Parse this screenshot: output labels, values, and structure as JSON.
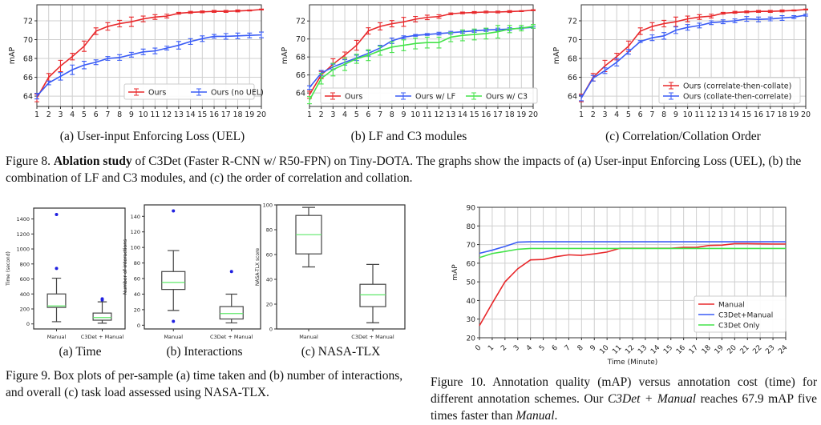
{
  "figure8": {
    "label": "Figure 8.",
    "bold": "Ablation study",
    "text": " of C3Det (Faster R-CNN w/ R50-FPN) on Tiny-DOTA. The graphs show the impacts of (a) User-input Enforcing Loss (UEL), (b) the combination of LF and C3 modules, and (c) the order of correlation and collation."
  },
  "figure9": {
    "text": "Figure 9. Box plots of per-sample (a) time taken and (b) number of interactions, and overall (c) task load assessed using NASA-TLX."
  },
  "figure10": {
    "part1": "Figure 10. Annotation quality (mAP) versus annotation cost (time) for different annotation schemes. Our ",
    "italic1": "C3Det + Manual",
    "part2": " reaches 67.9 mAP five times faster than ",
    "italic2": "Manual",
    "part3": "."
  },
  "colors": {
    "red": "#e8282b",
    "blue": "#3a5cf5",
    "green": "#44e34a",
    "median": "#5fe86a",
    "outlier": "#2020e0"
  },
  "chart_data": [
    {
      "id": "fig8a",
      "type": "line",
      "caption": "(a) User-input Enforcing Loss (UEL)",
      "ylabel": "mAP",
      "xlabel": "",
      "xlim": [
        1,
        20
      ],
      "ylim": [
        62.9,
        73.7
      ],
      "xticks": [
        1,
        2,
        3,
        4,
        5,
        6,
        7,
        8,
        9,
        10,
        11,
        12,
        13,
        14,
        15,
        16,
        17,
        18,
        19,
        20
      ],
      "yticks": [
        64,
        66,
        68,
        70,
        72
      ],
      "grid": true,
      "legend": "lower right",
      "error_bars": true,
      "x": [
        1,
        2,
        3,
        4,
        5,
        6,
        7,
        8,
        9,
        10,
        11,
        12,
        13,
        14,
        15,
        16,
        17,
        18,
        19,
        20
      ],
      "series": [
        {
          "name": "Ours",
          "color": "#e8282b",
          "values": [
            63.8,
            66.0,
            67.2,
            68.2,
            69.3,
            70.9,
            71.4,
            71.7,
            71.9,
            72.2,
            72.4,
            72.5,
            72.8,
            72.9,
            72.95,
            73.0,
            73.0,
            73.05,
            73.1,
            73.2
          ],
          "errors": [
            0.4,
            0.4,
            0.6,
            0.35,
            0.55,
            0.35,
            0.4,
            0.35,
            0.5,
            0.3,
            0.25,
            0.2,
            0.1,
            0.1,
            0.1,
            0.1,
            0.1,
            0.1,
            0.05,
            0.05
          ]
        },
        {
          "name": "Ours (no UEL)",
          "color": "#3a5cf5",
          "values": [
            64.0,
            65.4,
            66.1,
            66.8,
            67.3,
            67.6,
            68.0,
            68.1,
            68.4,
            68.7,
            68.8,
            69.1,
            69.4,
            69.8,
            70.1,
            70.35,
            70.35,
            70.4,
            70.45,
            70.5
          ],
          "errors": [
            0.3,
            0.2,
            0.4,
            0.5,
            0.4,
            0.25,
            0.2,
            0.3,
            0.25,
            0.3,
            0.3,
            0.2,
            0.4,
            0.3,
            0.3,
            0.2,
            0.3,
            0.3,
            0.25,
            0.3
          ]
        }
      ]
    },
    {
      "id": "fig8b",
      "type": "line",
      "caption": "(b) LF and C3 modules",
      "ylabel": "mAP",
      "xlabel": "",
      "xlim": [
        1,
        20
      ],
      "ylim": [
        62.5,
        73.8
      ],
      "xticks": [
        1,
        2,
        3,
        4,
        5,
        6,
        7,
        8,
        9,
        10,
        11,
        12,
        13,
        14,
        15,
        16,
        17,
        18,
        19,
        20
      ],
      "yticks": [
        64,
        66,
        68,
        70,
        72
      ],
      "grid": true,
      "legend": "lower center",
      "error_bars": true,
      "x": [
        1,
        2,
        3,
        4,
        5,
        6,
        7,
        8,
        9,
        10,
        11,
        12,
        13,
        14,
        15,
        16,
        17,
        18,
        19,
        20
      ],
      "series": [
        {
          "name": "Ours",
          "color": "#e8282b",
          "values": [
            63.8,
            66.0,
            67.2,
            68.2,
            69.3,
            70.9,
            71.4,
            71.7,
            71.9,
            72.2,
            72.4,
            72.5,
            72.8,
            72.9,
            72.95,
            73.0,
            73.0,
            73.05,
            73.1,
            73.2
          ],
          "errors": [
            0.4,
            0.4,
            0.6,
            0.35,
            0.55,
            0.35,
            0.4,
            0.35,
            0.5,
            0.3,
            0.25,
            0.2,
            0.1,
            0.1,
            0.1,
            0.1,
            0.1,
            0.1,
            0.05,
            0.05
          ]
        },
        {
          "name": "Ours w/ LF",
          "color": "#3a5cf5",
          "values": [
            64.6,
            66.2,
            66.9,
            67.4,
            67.9,
            68.4,
            69.0,
            69.8,
            70.2,
            70.4,
            70.5,
            70.6,
            70.7,
            70.8,
            70.9,
            71.0,
            71.05,
            71.1,
            71.2,
            71.3
          ],
          "errors": [
            0.2,
            0.3,
            0.3,
            0.3,
            0.3,
            0.3,
            0.3,
            0.3,
            0.15,
            0.1,
            0.1,
            0.15,
            0.15,
            0.15,
            0.15,
            0.15,
            0.15,
            0.15,
            0.1,
            0.1
          ]
        },
        {
          "name": "Ours w/ C3",
          "color": "#44e34a",
          "values": [
            63.2,
            65.6,
            66.6,
            67.2,
            67.8,
            68.2,
            68.7,
            69.1,
            69.3,
            69.5,
            69.6,
            69.6,
            70.2,
            70.4,
            70.5,
            70.6,
            70.8,
            71.1,
            71.2,
            71.4
          ],
          "errors": [
            0.4,
            0.6,
            0.7,
            0.7,
            0.5,
            0.6,
            0.5,
            0.6,
            0.6,
            0.6,
            0.6,
            0.6,
            0.5,
            0.6,
            0.6,
            0.6,
            0.7,
            0.4,
            0.3,
            0.2
          ]
        }
      ]
    },
    {
      "id": "fig8c",
      "type": "line",
      "caption": "(c) Correlation/Collation Order",
      "ylabel": "mAP",
      "xlabel": "",
      "xlim": [
        1,
        20
      ],
      "ylim": [
        62.9,
        73.7
      ],
      "xticks": [
        1,
        2,
        3,
        4,
        5,
        6,
        7,
        8,
        9,
        10,
        11,
        12,
        13,
        14,
        15,
        16,
        17,
        18,
        19,
        20
      ],
      "yticks": [
        64,
        66,
        68,
        70,
        72
      ],
      "grid": true,
      "legend": "lower right",
      "error_bars": true,
      "x": [
        1,
        2,
        3,
        4,
        5,
        6,
        7,
        8,
        9,
        10,
        11,
        12,
        13,
        14,
        15,
        16,
        17,
        18,
        19,
        20
      ],
      "series": [
        {
          "name": "Ours (correlate-then-collate)",
          "color": "#e8282b",
          "values": [
            63.8,
            66.0,
            67.2,
            68.2,
            69.3,
            70.9,
            71.4,
            71.7,
            71.9,
            72.2,
            72.4,
            72.5,
            72.8,
            72.9,
            72.95,
            73.0,
            73.0,
            73.05,
            73.1,
            73.2
          ],
          "errors": [
            0.4,
            0.4,
            0.6,
            0.35,
            0.55,
            0.35,
            0.4,
            0.35,
            0.5,
            0.3,
            0.25,
            0.2,
            0.1,
            0.1,
            0.1,
            0.1,
            0.1,
            0.1,
            0.05,
            0.05
          ]
        },
        {
          "name": "Ours (collate-then-correlate)",
          "color": "#3a5cf5",
          "values": [
            63.8,
            65.9,
            66.7,
            67.6,
            68.7,
            69.8,
            70.2,
            70.4,
            71.0,
            71.3,
            71.5,
            71.8,
            71.9,
            72.0,
            72.2,
            72.15,
            72.2,
            72.3,
            72.4,
            72.6
          ],
          "errors": [
            0.3,
            0.3,
            0.3,
            0.4,
            0.25,
            0.1,
            0.3,
            0.35,
            0.35,
            0.3,
            0.25,
            0.2,
            0.2,
            0.2,
            0.25,
            0.25,
            0.2,
            0.25,
            0.15,
            0.1
          ]
        }
      ]
    },
    {
      "id": "fig9a",
      "type": "box",
      "caption": "(a) Time",
      "ylabel": "Time (second)",
      "categories": [
        "Manual",
        "C3Det + Manual"
      ],
      "ylim": [
        -67,
        1545
      ],
      "yticks": [
        0,
        200,
        400,
        600,
        800,
        1000,
        1200,
        1400
      ],
      "boxes": [
        {
          "whisker_low": 30,
          "q1": 220,
          "median": 240,
          "q3": 400,
          "whisker_high": 610,
          "outliers": [
            740,
            1460
          ]
        },
        {
          "whisker_low": 10,
          "q1": 50,
          "median": 85,
          "q3": 145,
          "whisker_high": 295,
          "outliers": [
            320,
            335
          ]
        }
      ]
    },
    {
      "id": "fig9b",
      "type": "box",
      "caption": "(b) Interactions",
      "ylabel": "Number of interactions",
      "categories": [
        "Manual",
        "C3Det + Manual"
      ],
      "ylim": [
        -4.8,
        154.7
      ],
      "yticks": [
        0,
        20,
        40,
        60,
        80,
        100,
        120,
        140
      ],
      "boxes": [
        {
          "whisker_low": 19,
          "q1": 46,
          "median": 55,
          "q3": 69,
          "whisker_high": 96,
          "outliers": [
            5,
            147
          ]
        },
        {
          "whisker_low": 3,
          "q1": 8,
          "median": 15,
          "q3": 24,
          "whisker_high": 40,
          "outliers": [
            69
          ]
        }
      ]
    },
    {
      "id": "fig9c",
      "type": "box",
      "caption": "(c) NASA-TLX",
      "ylabel": "NASA-TLX score",
      "categories": [
        "Manual",
        "C3Det + Manual"
      ],
      "ylim": [
        0,
        100
      ],
      "yticks": [
        0,
        20,
        40,
        60,
        80,
        100
      ],
      "boxes": [
        {
          "whisker_low": 50,
          "q1": 60.5,
          "median": 76,
          "q3": 91.5,
          "whisker_high": 98,
          "outliers": []
        },
        {
          "whisker_low": 5,
          "q1": 18,
          "median": 27.5,
          "q3": 36,
          "whisker_high": 52,
          "outliers": []
        }
      ]
    },
    {
      "id": "fig10",
      "type": "line",
      "caption": "",
      "ylabel": "mAP",
      "xlabel": "Time (Minute)",
      "xlim": [
        0,
        24
      ],
      "ylim": [
        20,
        90
      ],
      "xticks": [
        0,
        1,
        2,
        3,
        4,
        5,
        6,
        7,
        8,
        9,
        10,
        11,
        12,
        13,
        14,
        15,
        16,
        17,
        18,
        19,
        20,
        21,
        22,
        23,
        24
      ],
      "yticks": [
        20,
        30,
        40,
        50,
        60,
        70,
        80,
        90
      ],
      "grid": true,
      "legend": "lower right",
      "error_bars": false,
      "x": [
        0,
        1,
        2,
        3,
        4,
        5,
        6,
        7,
        8,
        9,
        10,
        11,
        12,
        13,
        14,
        15,
        16,
        17,
        18,
        19,
        20,
        21,
        22,
        23,
        24
      ],
      "series": [
        {
          "name": "Manual",
          "color": "#e8282b",
          "values": [
            26.5,
            38.5,
            50,
            57,
            61.8,
            62,
            63.5,
            64.5,
            64.2,
            65,
            66,
            68,
            68,
            68,
            68,
            68,
            68.5,
            68.5,
            69.5,
            69.7,
            70.5,
            70.5,
            70.4,
            70.3,
            70.3
          ]
        },
        {
          "name": "C3Det+Manual",
          "color": "#3a5cf5",
          "values": [
            65.3,
            67,
            69,
            71.3,
            71.5,
            71.5,
            71.5,
            71.5,
            71.5,
            71.5,
            71.5,
            71.5,
            71.5,
            71.5,
            71.5,
            71.5,
            71.5,
            71.5,
            71.5,
            71.5,
            71.5,
            71.5,
            71.5,
            71.5,
            71.5
          ]
        },
        {
          "name": "C3Det Only",
          "color": "#44e34a",
          "values": [
            63,
            65.2,
            66.3,
            67.5,
            67.9,
            67.9,
            67.9,
            67.9,
            67.9,
            67.9,
            67.9,
            67.9,
            67.9,
            67.9,
            67.9,
            67.9,
            67.9,
            67.9,
            67.9,
            67.9,
            67.9,
            67.9,
            67.9,
            67.9,
            67.9
          ]
        }
      ]
    }
  ]
}
